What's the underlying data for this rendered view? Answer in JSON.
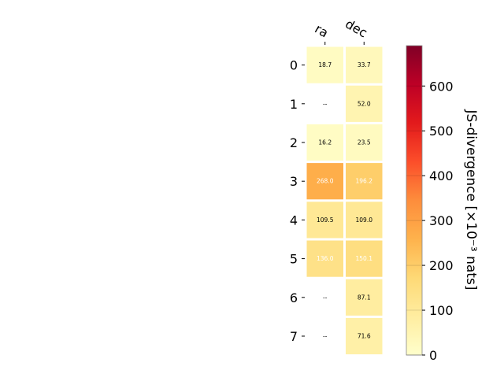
{
  "chart_data": {
    "type": "heatmap",
    "columns": [
      "ra",
      "dec"
    ],
    "rows": [
      "0",
      "1",
      "2",
      "3",
      "4",
      "5",
      "6",
      "7"
    ],
    "values": [
      [
        18.7,
        33.7
      ],
      [
        null,
        52.0
      ],
      [
        16.2,
        23.5
      ],
      [
        268.0,
        196.2
      ],
      [
        109.5,
        109.0
      ],
      [
        136.0,
        150.1
      ],
      [
        null,
        87.1
      ],
      [
        null,
        71.6
      ]
    ],
    "cell_labels": [
      [
        "18.7",
        "33.7"
      ],
      [
        "--",
        "52.0"
      ],
      [
        "16.2",
        "23.5"
      ],
      [
        "268.0",
        "196.2"
      ],
      [
        "109.5",
        "109.0"
      ],
      [
        "136.0",
        "150.1"
      ],
      [
        "--",
        "87.1"
      ],
      [
        "--",
        "71.6"
      ]
    ],
    "colorbar": {
      "label": "JS-divergence [×10⁻³ nats]",
      "min": 0,
      "max": 690,
      "ticks": [
        "0",
        "100",
        "200",
        "300",
        "400",
        "500",
        "600"
      ],
      "tick_values": [
        0,
        100,
        200,
        300,
        400,
        500,
        600
      ],
      "colormap": "YlOrRd"
    }
  }
}
